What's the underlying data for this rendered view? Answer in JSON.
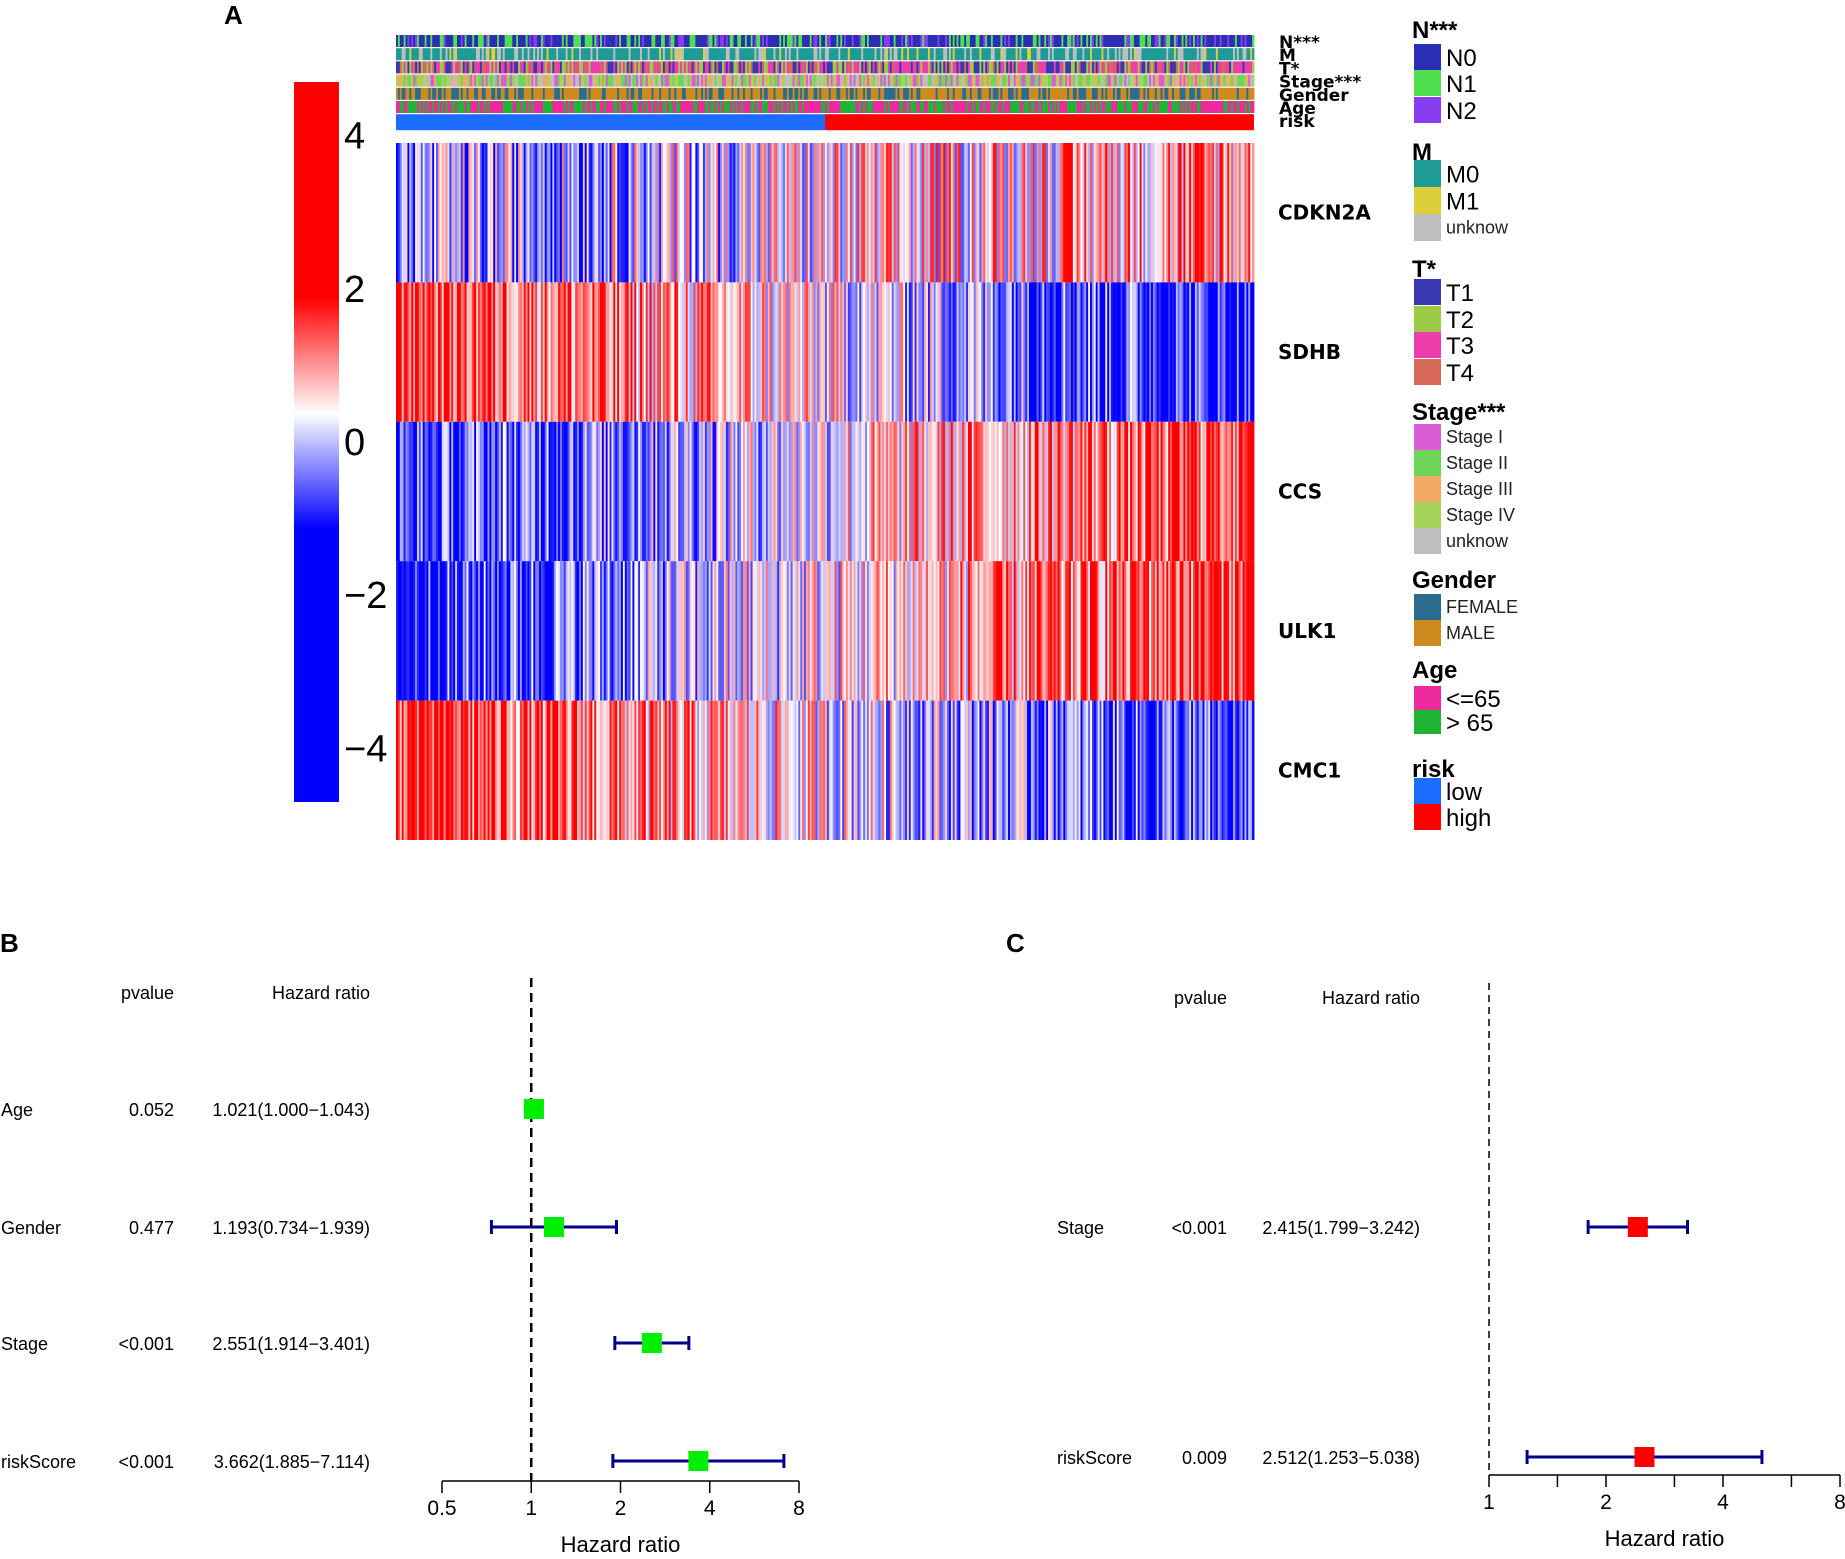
{
  "colors": {
    "heat_high": "#FF0000",
    "heat_mid": "#FFFFFF",
    "heat_low": "#0000FF",
    "forest_box_B": "#00EE00",
    "forest_box_C": "#FF0000",
    "ci_line": "#00008B"
  },
  "chart_data": [
    {
      "type": "heatmap",
      "panel": "A",
      "genes": [
        "CDKN2A",
        "SDHB",
        "CCS",
        "ULK1",
        "CMC1"
      ],
      "color_scale": {
        "ticks": [
          4,
          2,
          0,
          -2,
          -4
        ],
        "tick_labels": [
          "4",
          "2",
          "0",
          "−2",
          "−4"
        ],
        "range": [
          -4.7,
          4.7
        ]
      },
      "annotation_tracks": [
        "N***",
        "M",
        "T*",
        "Stage***",
        "Gender",
        "Age",
        "risk"
      ],
      "samples_approx": 450,
      "risk_split": {
        "low_fraction": 0.5,
        "high_fraction": 0.5
      },
      "legends": [
        {
          "title": "N***",
          "size": "lg",
          "items": [
            {
              "label": "N0",
              "color": "#2B2FB5"
            },
            {
              "label": "N1",
              "color": "#4EE04E"
            },
            {
              "label": "N2",
              "color": "#8A3CF0"
            }
          ]
        },
        {
          "title": "M",
          "size": "lg",
          "items": [
            {
              "label": "M0",
              "color": "#1F9B96"
            },
            {
              "label": "M1",
              "color": "#DDCF3C"
            },
            {
              "label": "unknow",
              "color": "#BEBEBE",
              "small": true
            }
          ]
        },
        {
          "title": "T*",
          "size": "lg",
          "items": [
            {
              "label": "T1",
              "color": "#3838B0"
            },
            {
              "label": "T2",
              "color": "#9CCC46"
            },
            {
              "label": "T3",
              "color": "#EC3EAA"
            },
            {
              "label": "T4",
              "color": "#D8685A"
            }
          ]
        },
        {
          "title": "Stage***",
          "size": "sm",
          "items": [
            {
              "label": "Stage I",
              "color": "#D95ED6"
            },
            {
              "label": "Stage II",
              "color": "#6ED45A"
            },
            {
              "label": "Stage III",
              "color": "#F0AA64"
            },
            {
              "label": "Stage IV",
              "color": "#A6D45A"
            },
            {
              "label": "unknow",
              "color": "#BEBEBE"
            }
          ]
        },
        {
          "title": "Gender",
          "size": "sm",
          "items": [
            {
              "label": "FEMALE",
              "color": "#2B6C8E"
            },
            {
              "label": "MALE",
              "color": "#CD8A1E"
            }
          ]
        },
        {
          "title": "Age",
          "size": "lg",
          "items": [
            {
              "label": "<=65",
              "color": "#EC2A9E"
            },
            {
              "label": "> 65",
              "color": "#20B434"
            }
          ]
        },
        {
          "title": "risk",
          "size": "lg",
          "items": [
            {
              "label": "low",
              "color": "#1C6CFF"
            },
            {
              "label": "high",
              "color": "#FF0000"
            }
          ]
        }
      ]
    },
    {
      "type": "forest",
      "panel": "B",
      "headers": {
        "pvalue": "pvalue",
        "hr": "Hazard ratio"
      },
      "rows": [
        {
          "label": "Age",
          "pvalue": "0.052",
          "hr_text": "1.021(1.000−1.043)",
          "hr": 1.021,
          "lo": 1.0,
          "hi": 1.043
        },
        {
          "label": "Gender",
          "pvalue": "0.477",
          "hr_text": "1.193(0.734−1.939)",
          "hr": 1.193,
          "lo": 0.734,
          "hi": 1.939
        },
        {
          "label": "Stage",
          "pvalue": "<0.001",
          "hr_text": "2.551(1.914−3.401)",
          "hr": 2.551,
          "lo": 1.914,
          "hi": 3.401
        },
        {
          "label": "riskScore",
          "pvalue": "<0.001",
          "hr_text": "3.662(1.885−7.114)",
          "hr": 3.662,
          "lo": 1.885,
          "hi": 7.114
        }
      ],
      "xaxis": {
        "title": "Hazard ratio",
        "ticks": [
          0.5,
          1,
          2,
          4,
          8
        ],
        "tick_labels": [
          "0.5",
          "1",
          "2",
          "4",
          "8"
        ],
        "scale": "log2",
        "range": [
          0.5,
          8
        ]
      },
      "reference_line": 1
    },
    {
      "type": "forest",
      "panel": "C",
      "headers": {
        "pvalue": "pvalue",
        "hr": "Hazard ratio"
      },
      "rows": [
        {
          "label": "Stage",
          "pvalue": "<0.001",
          "hr_text": "2.415(1.799−3.242)",
          "hr": 2.415,
          "lo": 1.799,
          "hi": 3.242
        },
        {
          "label": "riskScore",
          "pvalue": "0.009",
          "hr_text": "2.512(1.253−5.038)",
          "hr": 2.512,
          "lo": 1.253,
          "hi": 5.038
        }
      ],
      "xaxis": {
        "title": "Hazard ratio",
        "ticks": [
          1,
          2,
          4,
          8
        ],
        "tick_labels": [
          "1",
          "2",
          "4",
          "8"
        ],
        "scale": "log2",
        "range": [
          1,
          8
        ]
      },
      "reference_line": 1
    }
  ],
  "panels": {
    "a": "A",
    "b": "B",
    "c": "C"
  }
}
